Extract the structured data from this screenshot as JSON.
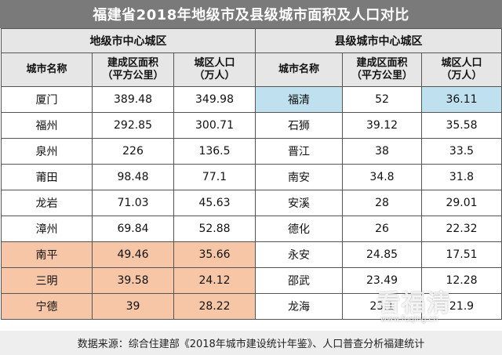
{
  "title": "福建省2018年地级市及县级城市面积及人口对比",
  "groups": {
    "left": "地级市中心城区",
    "right": "县级城市中心城区"
  },
  "headers": {
    "name": "城市名称",
    "area_line1": "建成区面积",
    "area_line2": "（平方公里）",
    "pop_line1": "城区人口",
    "pop_line2": "（万人）"
  },
  "left_rows": [
    {
      "name": "厦门",
      "area": "389.48",
      "pop": "349.98"
    },
    {
      "name": "福州",
      "area": "292.85",
      "pop": "300.71"
    },
    {
      "name": "泉州",
      "area": "226",
      "pop": "136.5"
    },
    {
      "name": "莆田",
      "area": "98.48",
      "pop": "77.1"
    },
    {
      "name": "龙岩",
      "area": "71.03",
      "pop": "45.63"
    },
    {
      "name": "漳州",
      "area": "69.84",
      "pop": "52.88"
    },
    {
      "name": "南平",
      "area": "49.46",
      "pop": "35.66"
    },
    {
      "name": "三明",
      "area": "39.58",
      "pop": "24.12"
    },
    {
      "name": "宁德",
      "area": "39",
      "pop": "28.22"
    }
  ],
  "right_rows": [
    {
      "name": "福清",
      "area": "52",
      "pop": "36.11"
    },
    {
      "name": "石狮",
      "area": "39.12",
      "pop": "35.58"
    },
    {
      "name": "晋江",
      "area": "38",
      "pop": "33.5"
    },
    {
      "name": "南安",
      "area": "34.8",
      "pop": "31.8"
    },
    {
      "name": "安溪",
      "area": "28",
      "pop": "29.01"
    },
    {
      "name": "德化",
      "area": "26",
      "pop": "22.32"
    },
    {
      "name": "永安",
      "area": "24.85",
      "pop": "17.51"
    },
    {
      "name": "邵武",
      "area": "23.49",
      "pop": "12.28"
    },
    {
      "name": "龙海",
      "area": "23.1",
      "pop": "21.9"
    }
  ],
  "highlight_colors": {
    "blue": "#bfe1ef",
    "orange": "#f6c6a6"
  },
  "footer": "数据来源：综合住建部《2018年城市建设统计年鉴》、人口普查分析福建统计",
  "watermark": {
    "text": "看福清",
    "url": "www.fuqing.cn"
  }
}
